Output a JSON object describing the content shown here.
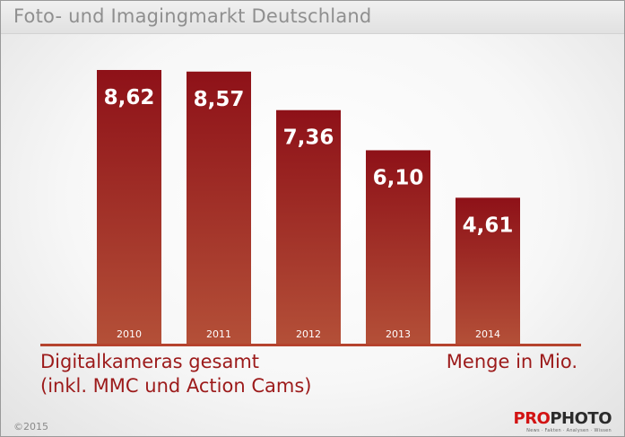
{
  "header": {
    "title": "Foto- und Imagingmarkt Deutschland"
  },
  "chart_data": {
    "type": "bar",
    "categories": [
      "2010",
      "2011",
      "2012",
      "2013",
      "2014"
    ],
    "values": [
      8.62,
      8.57,
      7.36,
      6.1,
      4.61
    ],
    "value_labels": [
      "8,62",
      "8,57",
      "7,36",
      "6,10",
      "4,61"
    ],
    "ylim": [
      0,
      10
    ],
    "grid": false,
    "bar_color_top": "#8e1118",
    "bar_color_bottom": "#b45038"
  },
  "labels": {
    "series_line1": "Digitalkameras gesamt",
    "series_line2": "(inkl. MMC und Action Cams)",
    "unit": "Menge in Mio."
  },
  "footer": {
    "copyright": "©2015",
    "logo_part1": "PRO",
    "logo_part2": "PHOTO",
    "logo_tagline": "News · Fakten · Analysen · Wissen"
  }
}
